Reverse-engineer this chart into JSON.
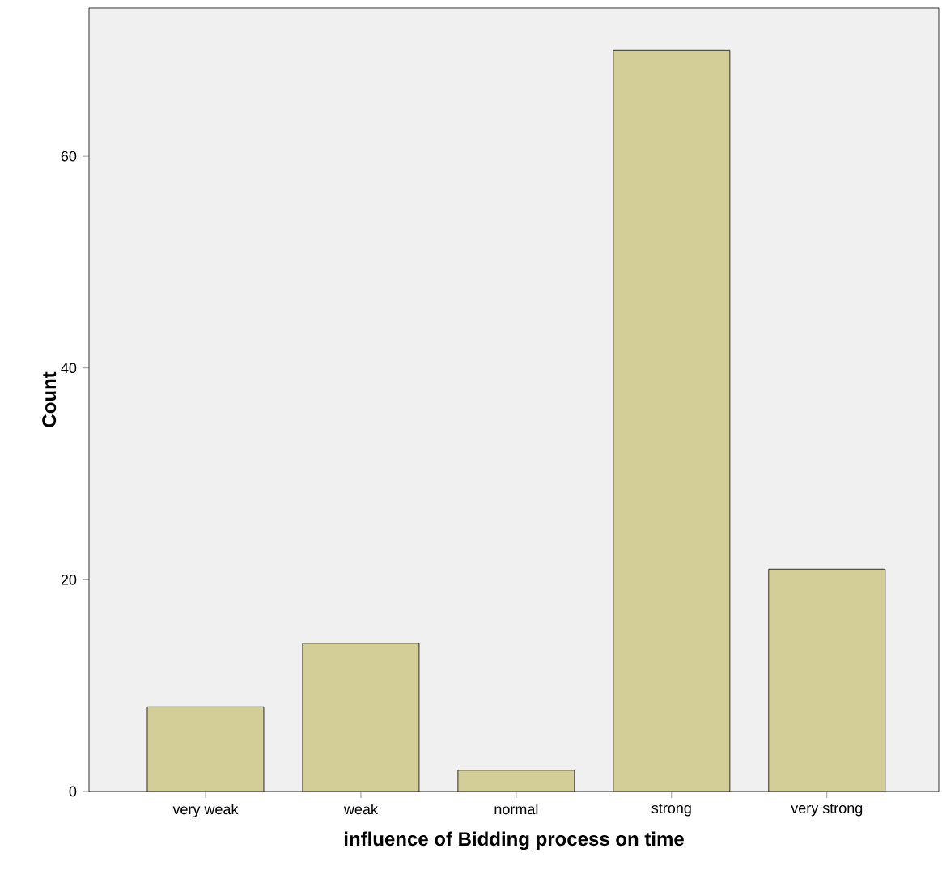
{
  "chart_data": {
    "type": "bar",
    "xlabel": "influence of Bidding process on time",
    "ylabel": "Count",
    "categories": [
      "very weak",
      "weak",
      "normal",
      "strong",
      "very strong"
    ],
    "values": [
      8,
      14,
      2,
      70,
      21
    ],
    "color": "#d3ce97",
    "ylim": [
      0,
      74
    ],
    "yticks": [
      0,
      20,
      40,
      60
    ],
    "grid": false
  }
}
